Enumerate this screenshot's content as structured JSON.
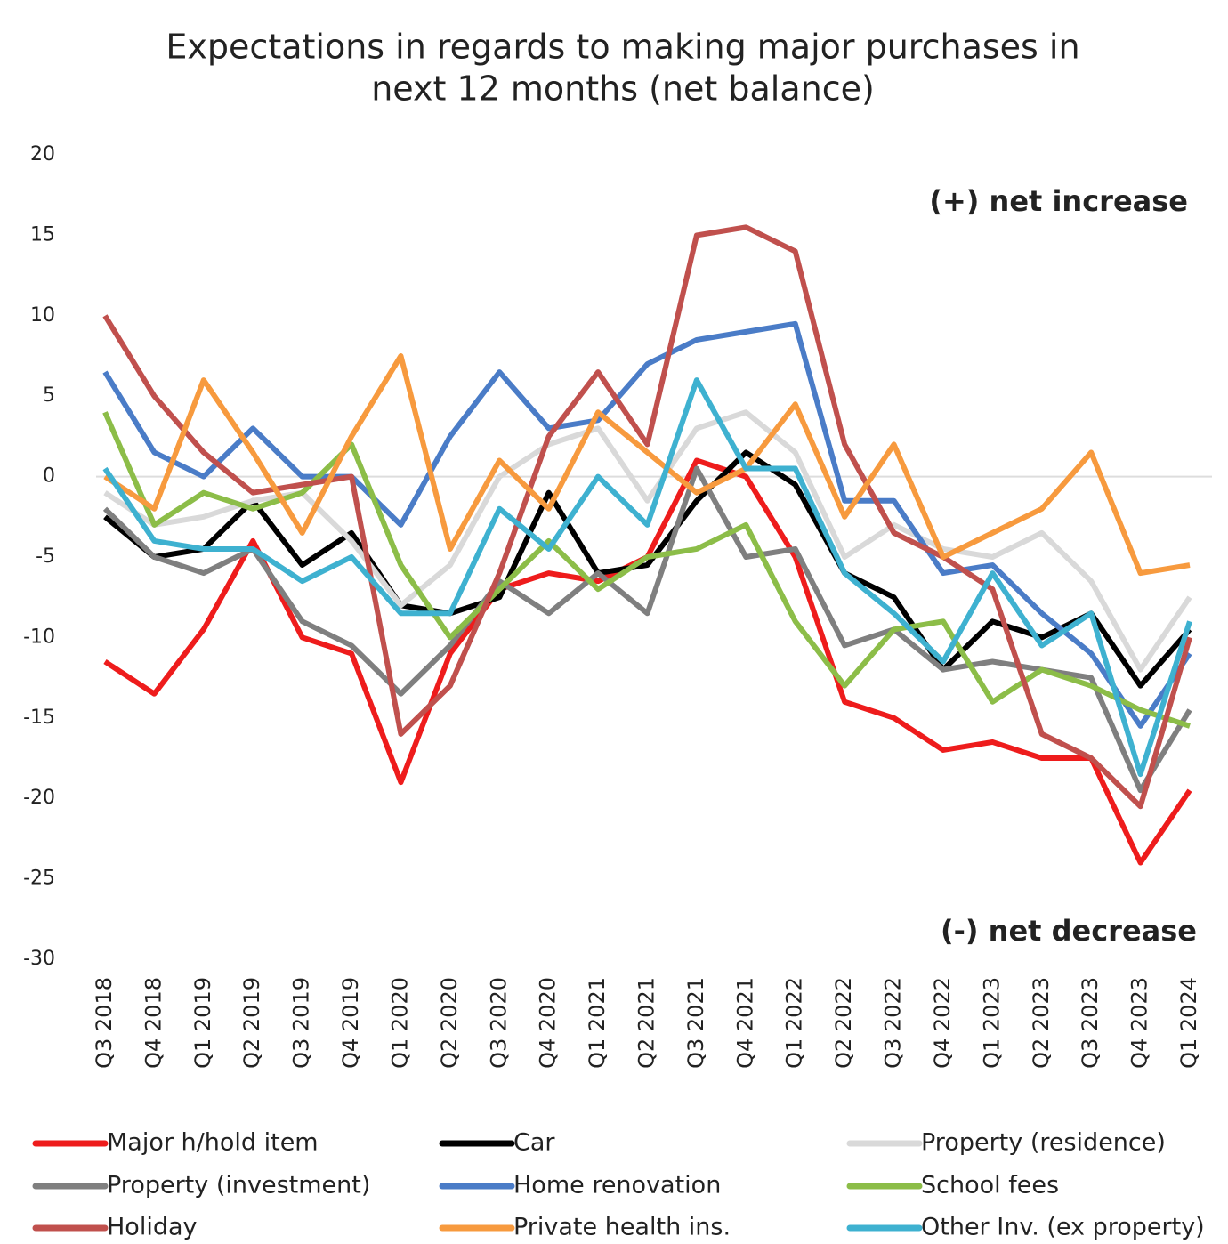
{
  "chart_data": {
    "type": "line",
    "title": "Expectations in regards to making major purchases in",
    "subtitle": "next 12 months (net balance)",
    "annotations": [
      "(+) net increase",
      "(-) net decrease"
    ],
    "categories": [
      "Q3 2018",
      "Q4 2018",
      "Q1 2019",
      "Q2 2019",
      "Q3 2019",
      "Q4 2019",
      "Q1 2020",
      "Q2 2020",
      "Q3 2020",
      "Q4 2020",
      "Q1 2021",
      "Q2 2021",
      "Q3 2021",
      "Q4 2021",
      "Q1 2022",
      "Q2 2022",
      "Q3 2022",
      "Q4 2022",
      "Q1 2023",
      "Q2 2023",
      "Q3 2023",
      "Q4 2023",
      "Q1 2024"
    ],
    "ylim": [
      -30,
      20
    ],
    "yticks": [
      -30,
      -25,
      -20,
      -15,
      -10,
      -5,
      0,
      5,
      10,
      15,
      20
    ],
    "series": [
      {
        "name": "Major h/hold item",
        "color": "#ee1c1c",
        "values": [
          -11.5,
          -13.5,
          -9.5,
          -4,
          -10,
          -11,
          -19,
          -11,
          -7,
          -6,
          -6.5,
          -5,
          1,
          0,
          -5,
          -14,
          -15,
          -17,
          -16.5,
          -17.5,
          -17.5,
          -24,
          -19.5
        ]
      },
      {
        "name": "Car",
        "color": "#000000",
        "values": [
          -2.5,
          -5,
          -4.5,
          -1.5,
          -5.5,
          -3.5,
          -8,
          -8.5,
          -7.5,
          -1,
          -6,
          -5.5,
          -1.5,
          1.5,
          -0.5,
          -6,
          -7.5,
          -12,
          -9,
          -10,
          -8.5,
          -13,
          -9.5
        ]
      },
      {
        "name": "Property (residence)",
        "color": "#d9d9d9",
        "values": [
          -1,
          -3,
          -2.5,
          -1.5,
          -1,
          -4,
          -8,
          -5.5,
          0,
          2,
          3,
          -1.5,
          3,
          4,
          1.5,
          -5,
          -3,
          -4.5,
          -5,
          -3.5,
          -6.5,
          -12,
          -7.5
        ]
      },
      {
        "name": "Property (investment)",
        "color": "#7f7f7f",
        "values": [
          -2,
          -5,
          -6,
          -4.5,
          -9,
          -10.5,
          -13.5,
          -10.5,
          -6.5,
          -8.5,
          -6,
          -8.5,
          0.5,
          -5,
          -4.5,
          -10.5,
          -9.5,
          -12,
          -11.5,
          -12,
          -12.5,
          -19.5,
          -14.5
        ]
      },
      {
        "name": "Home renovation",
        "color": "#4a7cc7",
        "values": [
          6.5,
          1.5,
          0,
          3,
          0,
          0,
          -3,
          2.5,
          6.5,
          3,
          3.5,
          7,
          8.5,
          9,
          9.5,
          -1.5,
          -1.5,
          -6,
          -5.5,
          -8.5,
          -11,
          -15.5,
          -11
        ]
      },
      {
        "name": "School fees",
        "color": "#8cbd48",
        "values": [
          4,
          -3,
          -1,
          -2,
          -1,
          2,
          -5.5,
          -10,
          -7,
          -4,
          -7,
          -5,
          -4.5,
          -3,
          -9,
          -13,
          -9.5,
          -9,
          -14,
          -12,
          -13,
          -14.5,
          -15.5
        ]
      },
      {
        "name": "Holiday",
        "color": "#c0504d",
        "values": [
          10,
          5,
          1.5,
          -1,
          -0.5,
          0,
          -16,
          -13,
          -6,
          2.5,
          6.5,
          2,
          15,
          15.5,
          14,
          2,
          -3.5,
          -5,
          -7,
          -16,
          -17.5,
          -20.5,
          -10
        ]
      },
      {
        "name": "Private health ins.",
        "color": "#f79a3e",
        "values": [
          0,
          -2,
          6,
          1.5,
          -3.5,
          2.5,
          7.5,
          -4.5,
          1,
          -2,
          4,
          1.5,
          -1,
          0.5,
          4.5,
          -2.5,
          2,
          -5,
          -3.5,
          -2,
          1.5,
          -6,
          -5.5
        ]
      },
      {
        "name": "Other Inv. (ex property)",
        "color": "#3eb1d0",
        "values": [
          0.5,
          -4,
          -4.5,
          -4.5,
          -6.5,
          -5,
          -8.5,
          -8.5,
          -2,
          -4.5,
          0,
          -3,
          6,
          0.5,
          0.5,
          -6,
          -8.5,
          -11.5,
          -6,
          -10.5,
          -8.5,
          -18.5,
          -9
        ]
      }
    ]
  }
}
